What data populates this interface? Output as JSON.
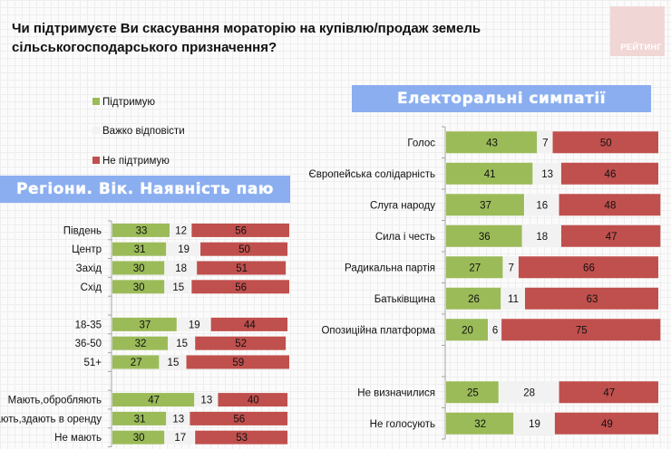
{
  "header": {
    "title_line1": "Чи підтримуєте Ви скасування мораторію на купівлю/продаж земель",
    "title_line2": "сільськогосподарського призначення?",
    "logo_text": "РЕЙТИНГ"
  },
  "colors": {
    "support": "#9bbb59",
    "undecided": "#f2f2f2",
    "oppose": "#c0504d",
    "banner": "#8aaef0"
  },
  "legend": [
    {
      "label": "Підтримую",
      "color": "#9bbb59"
    },
    {
      "label": "Важко відповісти",
      "color": "#f2f2f2"
    },
    {
      "label": "Не підтримую",
      "color": "#c0504d"
    }
  ],
  "banners": {
    "left": "Регіони. Вік. Наявність паю",
    "right": "Електоральні симпатії"
  },
  "chart_data": [
    {
      "type": "bar",
      "stacked": true,
      "orientation": "horizontal",
      "title": "Регіони. Вік. Наявність паю",
      "xlim": [
        0,
        101
      ],
      "series_names": [
        "Підтримую",
        "Важко відповісти",
        "Не підтримую"
      ],
      "categories": [
        "Південь",
        "Центр",
        "Захід",
        "Схід",
        "",
        "18-35",
        "36-50",
        "51+",
        "",
        "Мають,обробляють",
        "Мають,здають в оренду",
        "Не мають"
      ],
      "series": [
        {
          "name": "Підтримую",
          "values": [
            33,
            31,
            30,
            30,
            null,
            37,
            32,
            27,
            null,
            47,
            31,
            30
          ]
        },
        {
          "name": "Важко відповісти",
          "values": [
            12,
            19,
            18,
            15,
            null,
            19,
            15,
            15,
            null,
            13,
            13,
            17
          ]
        },
        {
          "name": "Не підтримую",
          "values": [
            56,
            50,
            51,
            56,
            null,
            44,
            52,
            59,
            null,
            40,
            56,
            53
          ]
        }
      ]
    },
    {
      "type": "bar",
      "stacked": true,
      "orientation": "horizontal",
      "title": "Електоральні симпатії",
      "xlim": [
        0,
        100
      ],
      "series_names": [
        "Підтримую",
        "Важко відповісти",
        "Не підтримую"
      ],
      "categories": [
        "Голос",
        "Європейська солідарність",
        "Слуга народу",
        "Сила і честь",
        "Радикальна партія",
        "Батьківщина",
        "Опозиційна платформа",
        "",
        "Не визначилися",
        "Не голосують"
      ],
      "series": [
        {
          "name": "Підтримую",
          "values": [
            43,
            41,
            37,
            36,
            27,
            26,
            20,
            null,
            25,
            32
          ]
        },
        {
          "name": "Важко відповісти",
          "values": [
            7,
            13,
            16,
            18,
            7,
            11,
            6,
            null,
            28,
            19
          ]
        },
        {
          "name": "Не підтримую",
          "values": [
            50,
            46,
            48,
            47,
            66,
            63,
            75,
            null,
            47,
            49
          ]
        }
      ]
    }
  ]
}
